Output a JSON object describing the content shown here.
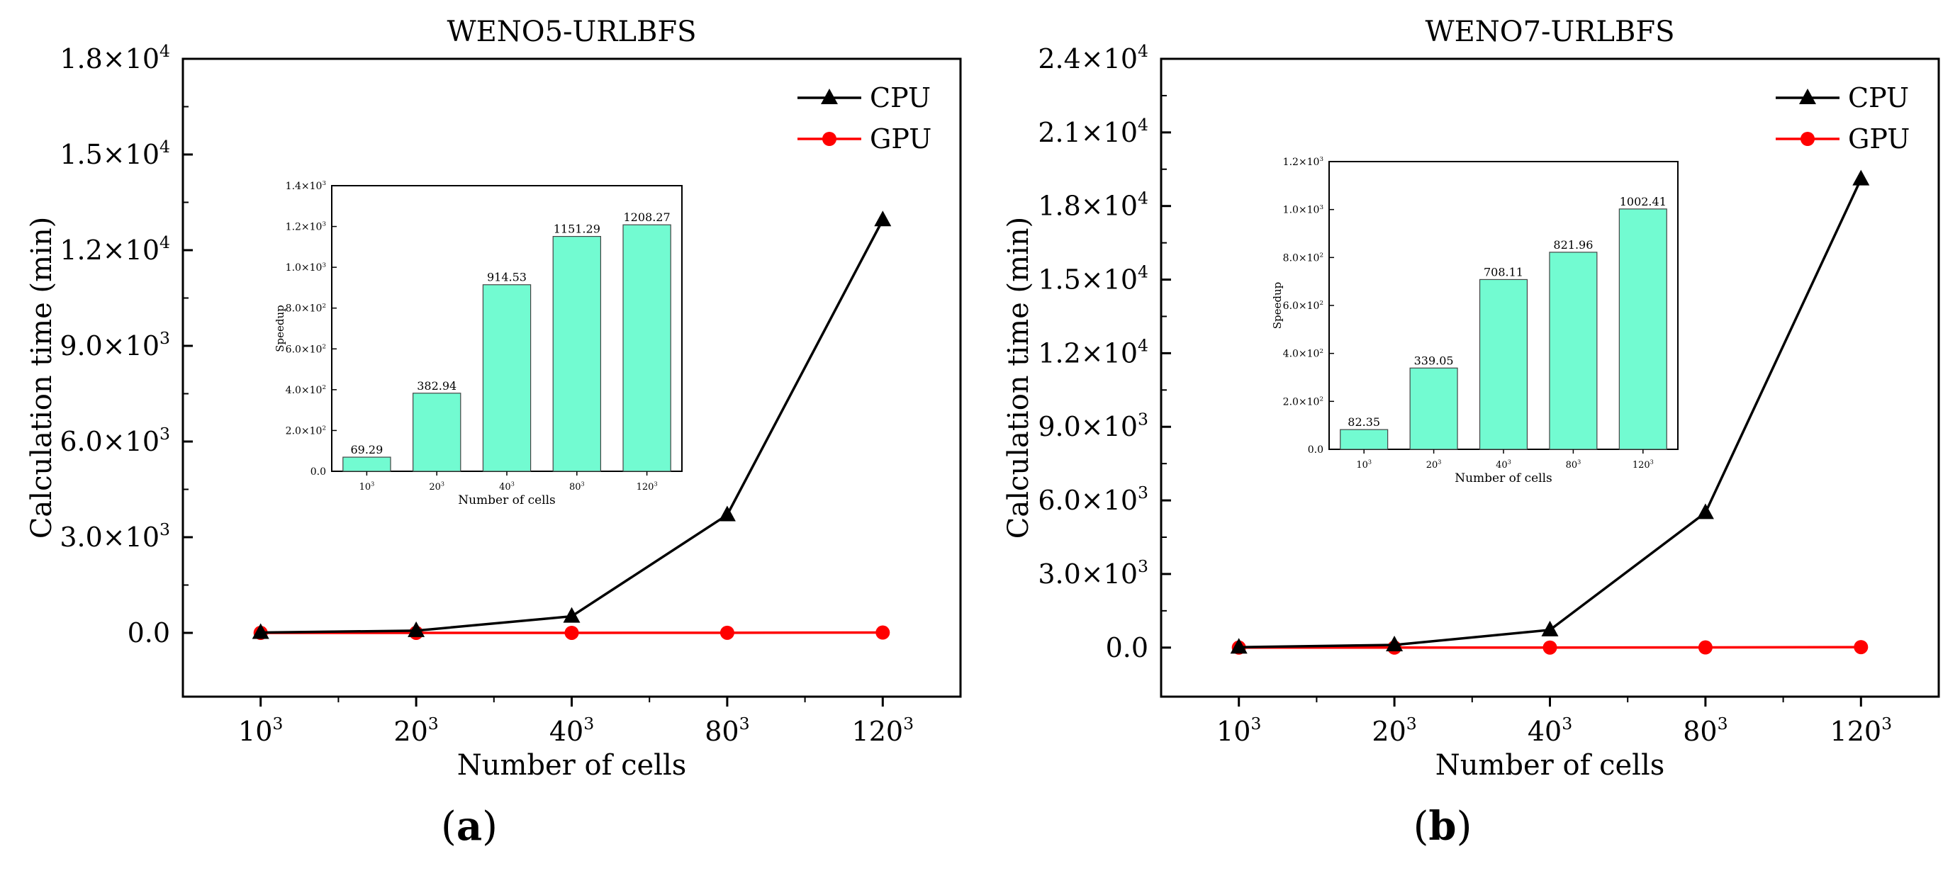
{
  "colors": {
    "cpu": "#000000",
    "gpu": "#ff0000",
    "bar_fill": "#72fbd1",
    "bar_stroke": "#444444"
  },
  "panels": [
    {
      "label_letter": "a",
      "chart_data": {
        "type": "line",
        "title": "WENO5-URLBFS",
        "xlabel": "Number of cells",
        "ylabel": "Calculation time (min)",
        "categories": [
          "10³",
          "20³",
          "40³",
          "80³",
          "120³"
        ],
        "ylim": [
          -2000,
          18000
        ],
        "y_ticks": [
          0,
          3000,
          6000,
          9000,
          12000,
          15000,
          18000
        ],
        "y_tick_labels": [
          [
            "0.0",
            ""
          ],
          [
            "3.0×10",
            "3"
          ],
          [
            "6.0×10",
            "3"
          ],
          [
            "9.0×10",
            "3"
          ],
          [
            "1.2×10",
            "4"
          ],
          [
            "1.5×10",
            "4"
          ],
          [
            "1.8×10",
            "4"
          ]
        ],
        "legend_position": "top-right",
        "series": [
          {
            "name": "CPU",
            "marker": "triangle",
            "values": [
              10,
              70,
              520,
              3700,
              12950
            ]
          },
          {
            "name": "GPU",
            "marker": "circle",
            "values": [
              0.1,
              0.2,
              0.6,
              3.2,
              10.7
            ]
          }
        ]
      },
      "inset_data": {
        "type": "bar",
        "xlabel": "Number of cells",
        "ylabel": "Speedup",
        "categories": [
          "10³",
          "20³",
          "40³",
          "80³",
          "120³"
        ],
        "values": [
          69.29,
          382.94,
          914.53,
          1151.29,
          1208.27
        ],
        "labels": [
          "69.29",
          "382.94",
          "914.53",
          "1151.29",
          "1208.27"
        ],
        "ylim": [
          0,
          1400
        ],
        "y_ticks": [
          0,
          200,
          400,
          600,
          800,
          1000,
          1200,
          1400
        ],
        "y_tick_labels": [
          [
            "0.0",
            ""
          ],
          [
            "2.0×10",
            "2"
          ],
          [
            "4.0×10",
            "2"
          ],
          [
            "6.0×10",
            "2"
          ],
          [
            "8.0×10",
            "2"
          ],
          [
            "1.0×10",
            "3"
          ],
          [
            "1.2×10",
            "3"
          ],
          [
            "1.4×10",
            "3"
          ]
        ]
      }
    },
    {
      "label_letter": "b",
      "chart_data": {
        "type": "line",
        "title": "WENO7-URLBFS",
        "xlabel": "Number of cells",
        "ylabel": "Calculation time (min)",
        "categories": [
          "10³",
          "20³",
          "40³",
          "80³",
          "120³"
        ],
        "ylim": [
          -2000,
          24000
        ],
        "y_ticks": [
          0,
          3000,
          6000,
          9000,
          12000,
          15000,
          18000,
          21000,
          24000
        ],
        "y_tick_labels": [
          [
            "0.0",
            ""
          ],
          [
            "3.0×10",
            "3"
          ],
          [
            "6.0×10",
            "3"
          ],
          [
            "9.0×10",
            "3"
          ],
          [
            "1.2×10",
            "4"
          ],
          [
            "1.5×10",
            "4"
          ],
          [
            "1.8×10",
            "4"
          ],
          [
            "2.1×10",
            "4"
          ],
          [
            "2.4×10",
            "4"
          ]
        ],
        "legend_position": "top-right",
        "series": [
          {
            "name": "CPU",
            "marker": "triangle",
            "values": [
              15,
              110,
              720,
              5500,
              19100
            ]
          },
          {
            "name": "GPU",
            "marker": "circle",
            "values": [
              0.2,
              0.3,
              1.0,
              6.7,
              19.1
            ]
          }
        ]
      },
      "inset_data": {
        "type": "bar",
        "xlabel": "Number of cells",
        "ylabel": "Speedup",
        "categories": [
          "10³",
          "20³",
          "40³",
          "80³",
          "120³"
        ],
        "values": [
          82.35,
          339.05,
          708.11,
          821.96,
          1002.41
        ],
        "labels": [
          "82.35",
          "339.05",
          "708.11",
          "821.96",
          "1002.41"
        ],
        "ylim": [
          0,
          1200
        ],
        "y_ticks": [
          0,
          200,
          400,
          600,
          800,
          1000,
          1200
        ],
        "y_tick_labels": [
          [
            "0.0",
            ""
          ],
          [
            "2.0×10",
            "2"
          ],
          [
            "4.0×10",
            "2"
          ],
          [
            "6.0×10",
            "2"
          ],
          [
            "8.0×10",
            "2"
          ],
          [
            "1.0×10",
            "3"
          ],
          [
            "1.2×10",
            "3"
          ]
        ]
      }
    }
  ]
}
